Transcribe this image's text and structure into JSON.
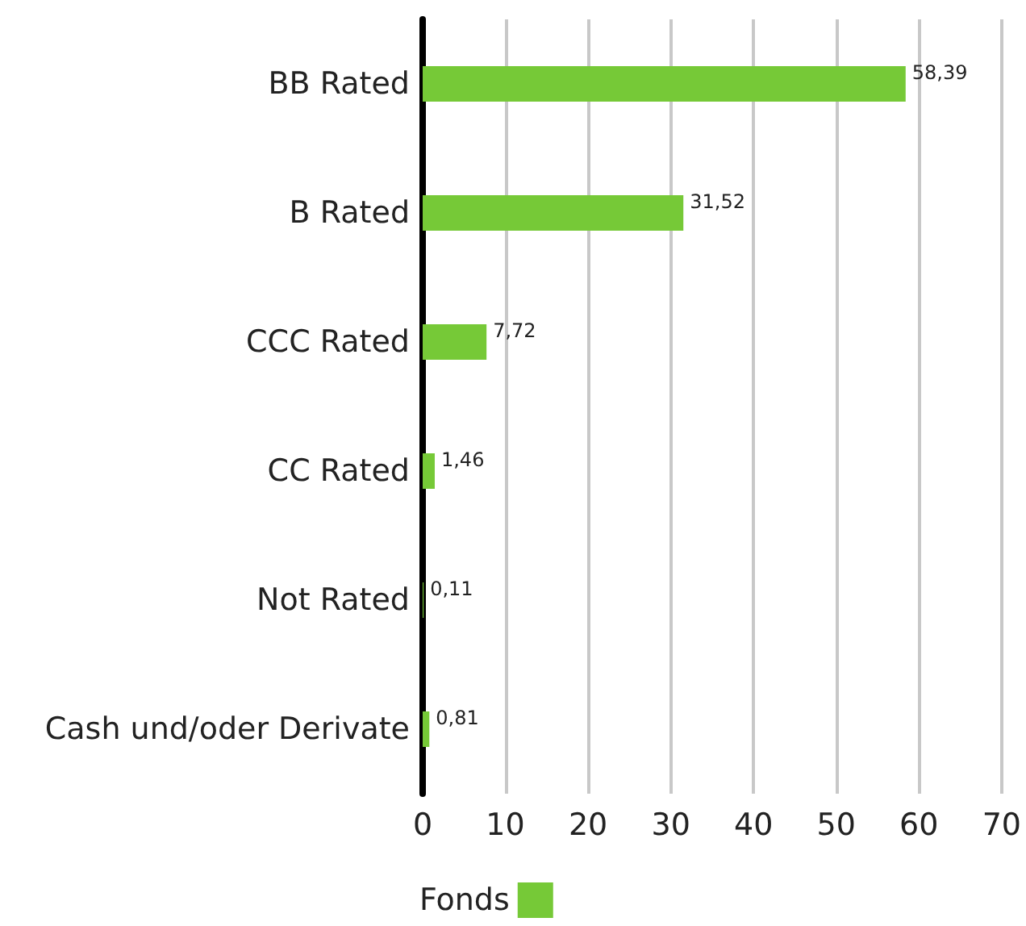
{
  "chart_data": {
    "type": "bar",
    "orientation": "horizontal",
    "categories": [
      "BB Rated",
      "B Rated",
      "CCC Rated",
      "CC Rated",
      "Not Rated",
      "Cash und/oder Derivate"
    ],
    "series": [
      {
        "name": "Fonds",
        "color": "#76c937",
        "values": [
          58.39,
          31.52,
          7.72,
          1.46,
          0.11,
          0.81
        ],
        "value_labels": [
          "58,39",
          "31,52",
          "7,72",
          "1,46",
          "0,11",
          "0,81"
        ]
      }
    ],
    "xlim": [
      0,
      70
    ],
    "xticks": [
      0,
      10,
      20,
      30,
      40,
      50,
      60,
      70
    ],
    "grid": "x",
    "legend": "bottom"
  }
}
